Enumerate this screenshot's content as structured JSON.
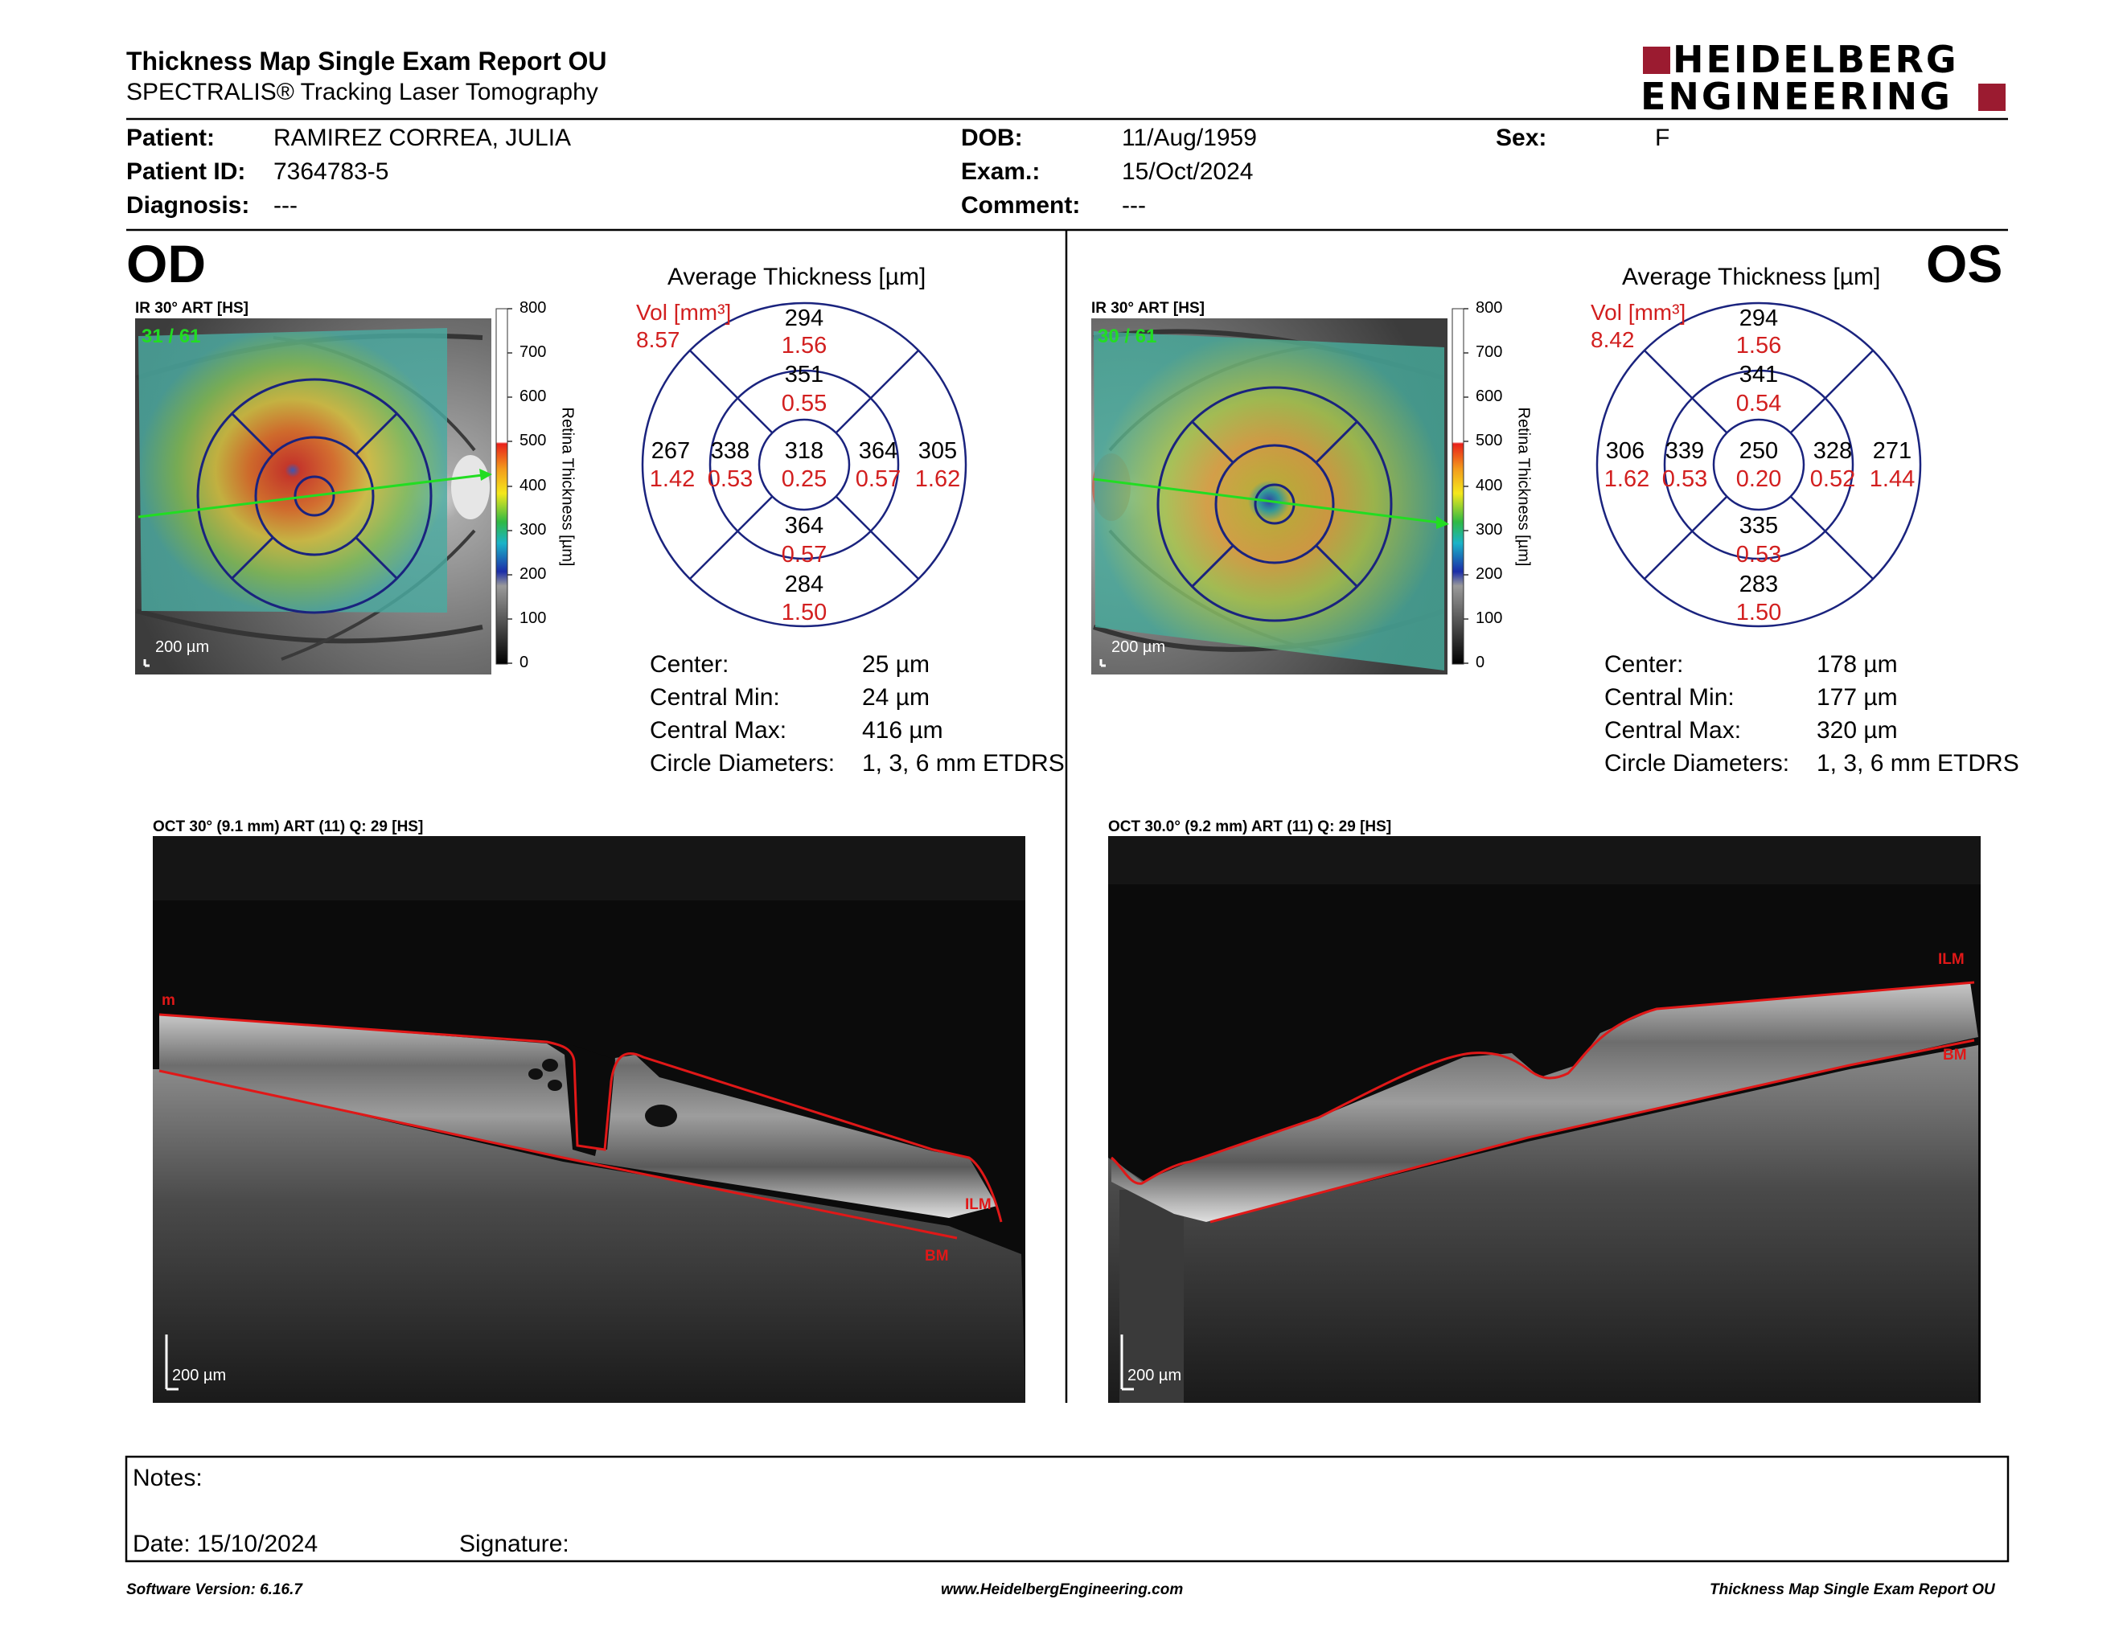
{
  "report": {
    "title": "Thickness Map Single Exam Report OU",
    "subtitle": "SPECTRALIS® Tracking Laser Tomography",
    "logo_line1": "HEIDELBERG",
    "logo_line2": "ENGINEERING"
  },
  "patient": {
    "patient_label": "Patient:",
    "patient_value": "RAMIREZ CORREA, JULIA",
    "id_label": "Patient ID:",
    "id_value": "7364783-5",
    "diagnosis_label": "Diagnosis:",
    "diagnosis_value": "---",
    "dob_label": "DOB:",
    "dob_value": "11/Aug/1959",
    "exam_label": "Exam.:",
    "exam_value": "15/Oct/2024",
    "comment_label": "Comment:",
    "comment_value": "---",
    "sex_label": "Sex:",
    "sex_value": "F"
  },
  "colorbar": {
    "title": "Retina Thickness [µm]",
    "ticks": [
      "800",
      "700",
      "600",
      "500",
      "400",
      "300",
      "200",
      "100",
      "0"
    ]
  },
  "od": {
    "eye_label": "OD",
    "ir_header": "IR 30° ART [HS]",
    "frame": "31 / 61",
    "scale_label": "200 µm",
    "avg_title": "Average Thickness [µm]",
    "vol_label": "Vol [mm³]",
    "vol_value": "8.57",
    "grid": {
      "outer_sup": "294",
      "outer_sup_vol": "1.56",
      "inner_sup": "351",
      "inner_sup_vol": "0.55",
      "outer_temp": "267",
      "outer_temp_vol": "1.42",
      "inner_temp": "338",
      "inner_temp_vol": "0.53",
      "center": "318",
      "center_vol": "0.25",
      "inner_nasal": "364",
      "inner_nasal_vol": "0.57",
      "outer_nasal": "305",
      "outer_nasal_vol": "1.62",
      "inner_inf": "364",
      "inner_inf_vol": "0.57",
      "outer_inf": "284",
      "outer_inf_vol": "1.50"
    },
    "stats": {
      "center_label": "Center:",
      "center_value": "25 µm",
      "min_label": "Central Min:",
      "min_value": "24 µm",
      "max_label": "Central Max:",
      "max_value": "416 µm",
      "circ_label": "Circle Diameters:",
      "circ_value": "1, 3, 6 mm ETDRS"
    },
    "oct_header": "OCT 30° (9.1 mm) ART (11) Q: 29 [HS]",
    "oct_scale": "200 µm",
    "oct_ilm_label": "ILM",
    "oct_ilm_label_edge": "m",
    "oct_bm_label": "BM"
  },
  "os": {
    "eye_label": "OS",
    "ir_header": "IR 30° ART [HS]",
    "frame": "30 / 61",
    "scale_label": "200 µm",
    "avg_title": "Average Thickness [µm]",
    "vol_label": "Vol [mm³]",
    "vol_value": "8.42",
    "grid": {
      "outer_sup": "294",
      "outer_sup_vol": "1.56",
      "inner_sup": "341",
      "inner_sup_vol": "0.54",
      "outer_temp": "306",
      "outer_temp_vol": "1.62",
      "inner_temp": "339",
      "inner_temp_vol": "0.53",
      "center": "250",
      "center_vol": "0.20",
      "inner_nasal": "328",
      "inner_nasal_vol": "0.52",
      "outer_nasal": "271",
      "outer_nasal_vol": "1.44",
      "inner_inf": "335",
      "inner_inf_vol": "0.53",
      "outer_inf": "283",
      "outer_inf_vol": "1.50"
    },
    "stats": {
      "center_label": "Center:",
      "center_value": "178 µm",
      "min_label": "Central Min:",
      "min_value": "177 µm",
      "max_label": "Central Max:",
      "max_value": "320 µm",
      "circ_label": "Circle Diameters:",
      "circ_value": "1, 3, 6 mm ETDRS"
    },
    "oct_header": "OCT 30.0° (9.2 mm) ART (11) Q: 29 [HS]",
    "oct_scale": "200 µm",
    "oct_ilm_label": "ILM",
    "oct_bm_label": "BM"
  },
  "notes": {
    "notes_label": "Notes:",
    "date_label": "Date: 15/10/2024",
    "signature_label": "Signature:"
  },
  "footer": {
    "software": "Software Version: 6.16.7",
    "website": "www.HeidelbergEngineering.com",
    "report_name": "Thickness Map Single Exam Report OU"
  },
  "colors": {
    "accent_red": "#d21f1f",
    "logo_red": "#9b1b30",
    "grid_blue": "#1a237e",
    "scan_green": "#22dd22"
  }
}
